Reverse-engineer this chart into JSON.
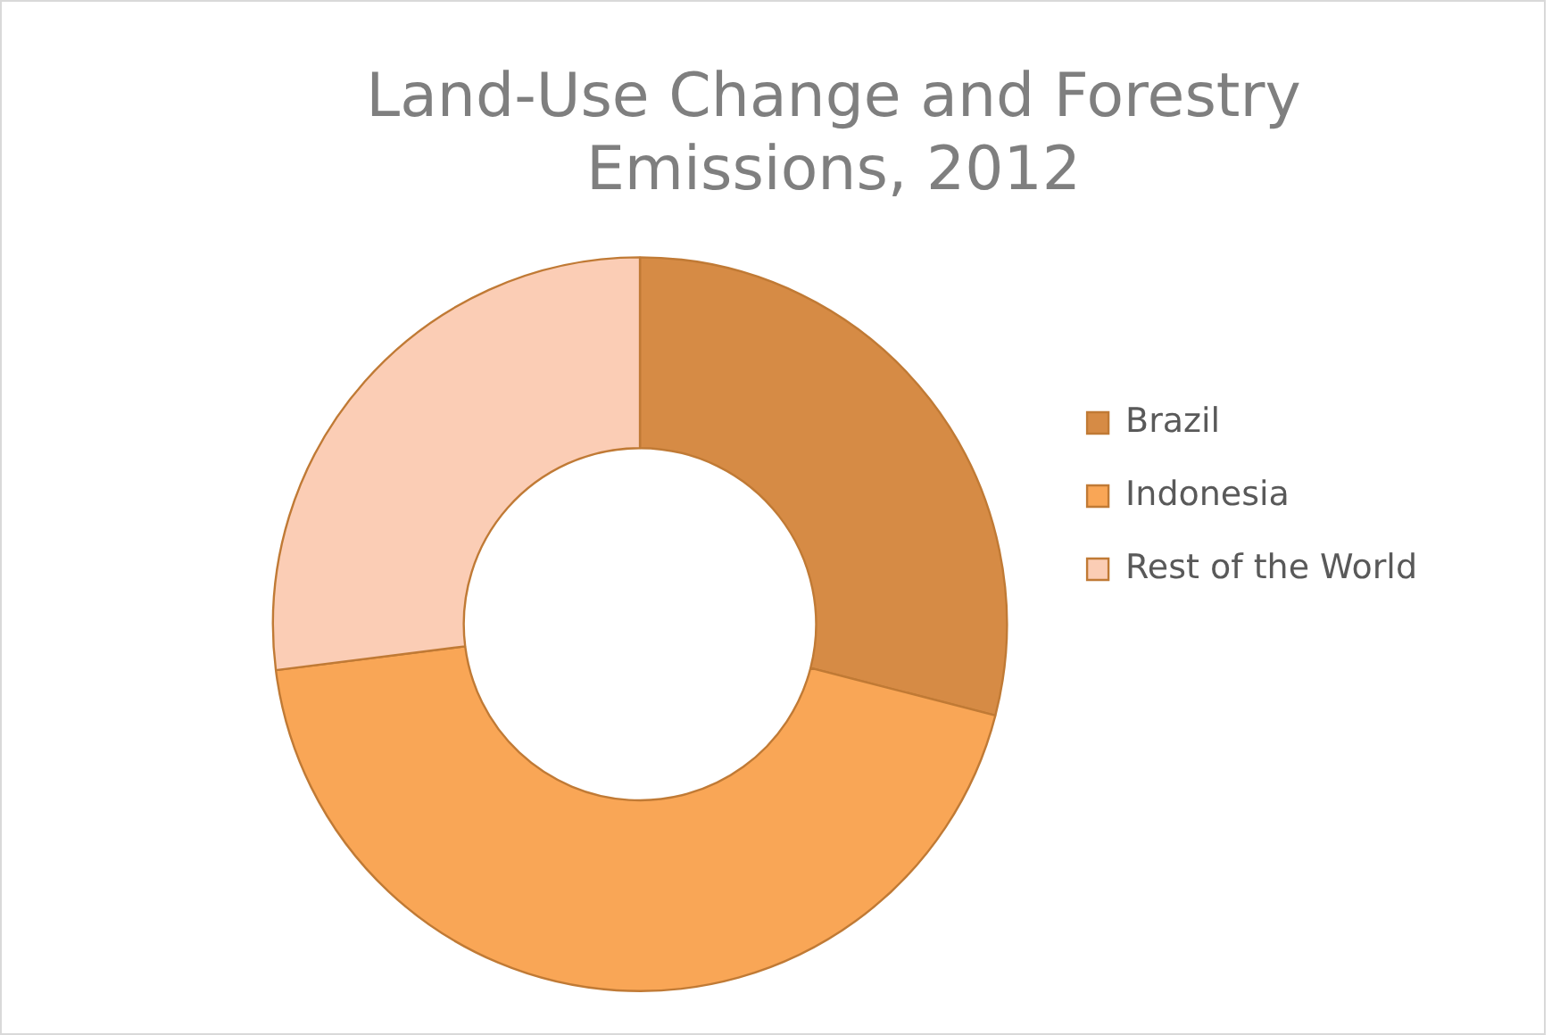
{
  "chart_data": {
    "type": "donut",
    "title": "Land-Use Change and Forestry Emissions, 2012",
    "categories": [
      "Brazil",
      "Indonesia",
      "Rest of the World"
    ],
    "values": [
      29,
      44,
      27
    ],
    "colors": [
      "#d68b45",
      "#f9a656",
      "#fbcdb5"
    ],
    "legend": "right"
  }
}
